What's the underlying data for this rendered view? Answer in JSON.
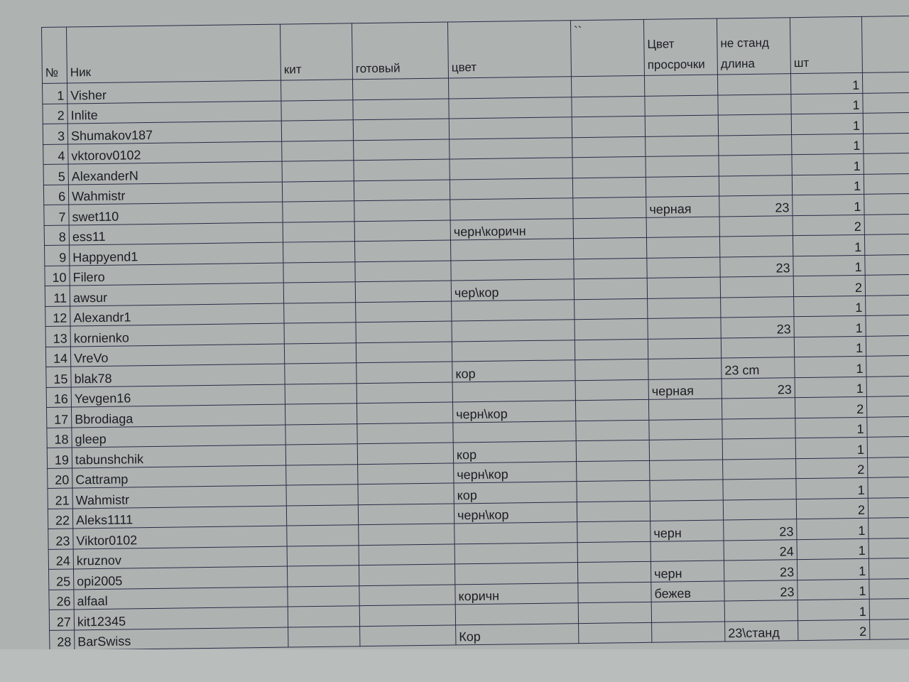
{
  "columns": [
    "№",
    "Ник",
    "кит",
    "готовый",
    "цвет",
    "``",
    "Цвет просрочки",
    "не станд длина",
    "шт"
  ],
  "rows": [
    {
      "n": "1",
      "nick": "Visher",
      "kit": "",
      "ready": "",
      "color": "",
      "q": "",
      "seam": "",
      "len": "",
      "qty": "1"
    },
    {
      "n": "2",
      "nick": "Inlite",
      "kit": "",
      "ready": "",
      "color": "",
      "q": "",
      "seam": "",
      "len": "",
      "qty": "1"
    },
    {
      "n": "3",
      "nick": "Shumakov187",
      "kit": "",
      "ready": "",
      "color": "",
      "q": "",
      "seam": "",
      "len": "",
      "qty": "1"
    },
    {
      "n": "4",
      "nick": "vktorov0102",
      "kit": "",
      "ready": "",
      "color": "",
      "q": "",
      "seam": "",
      "len": "",
      "qty": "1"
    },
    {
      "n": "5",
      "nick": "AlexanderN",
      "kit": "",
      "ready": "",
      "color": "",
      "q": "",
      "seam": "",
      "len": "",
      "qty": "1"
    },
    {
      "n": "6",
      "nick": "Wahmistr",
      "kit": "",
      "ready": "",
      "color": "",
      "q": "",
      "seam": "",
      "len": "",
      "qty": "1"
    },
    {
      "n": "7",
      "nick": "swet110",
      "kit": "",
      "ready": "",
      "color": "",
      "q": "",
      "seam": "черная",
      "len": "23",
      "qty": "1"
    },
    {
      "n": "8",
      "nick": "ess11",
      "kit": "",
      "ready": "",
      "color": "черн\\коричн",
      "q": "",
      "seam": "",
      "len": "",
      "qty": "2"
    },
    {
      "n": "9",
      "nick": "Happyend1",
      "kit": "",
      "ready": "",
      "color": "",
      "q": "",
      "seam": "",
      "len": "",
      "qty": "1"
    },
    {
      "n": "10",
      "nick": "Filero",
      "kit": "",
      "ready": "",
      "color": "",
      "q": "",
      "seam": "",
      "len": "23",
      "qty": "1"
    },
    {
      "n": "11",
      "nick": "awsur",
      "kit": "",
      "ready": "",
      "color": "чер\\кор",
      "q": "",
      "seam": "",
      "len": "",
      "qty": "2"
    },
    {
      "n": "12",
      "nick": "Alexandr1",
      "kit": "",
      "ready": "",
      "color": "",
      "q": "",
      "seam": "",
      "len": "",
      "qty": "1"
    },
    {
      "n": "13",
      "nick": "kornienko",
      "kit": "",
      "ready": "",
      "color": "",
      "q": "",
      "seam": "",
      "len": "23",
      "qty": "1"
    },
    {
      "n": "14",
      "nick": "VreVo",
      "kit": "",
      "ready": "",
      "color": "",
      "q": "",
      "seam": "",
      "len": "",
      "qty": "1"
    },
    {
      "n": "15",
      "nick": "blak78",
      "kit": "",
      "ready": "",
      "color": "кор",
      "q": "",
      "seam": "",
      "len": "23 cm",
      "qty": "1"
    },
    {
      "n": "16",
      "nick": "Yevgen16",
      "kit": "",
      "ready": "",
      "color": "",
      "q": "",
      "seam": "черная",
      "len": "23",
      "qty": "1"
    },
    {
      "n": "17",
      "nick": "Bbrodiaga",
      "kit": "",
      "ready": "",
      "color": "черн\\кор",
      "q": "",
      "seam": "",
      "len": "",
      "qty": "2"
    },
    {
      "n": "18",
      "nick": "gleep",
      "kit": "",
      "ready": "",
      "color": "",
      "q": "",
      "seam": "",
      "len": "",
      "qty": "1"
    },
    {
      "n": "19",
      "nick": "tabunshchik",
      "kit": "",
      "ready": "",
      "color": "кор",
      "q": "",
      "seam": "",
      "len": "",
      "qty": "1"
    },
    {
      "n": "20",
      "nick": "Cattramp",
      "kit": "",
      "ready": "",
      "color": "черн\\кор",
      "q": "",
      "seam": "",
      "len": "",
      "qty": "2"
    },
    {
      "n": "21",
      "nick": "Wahmistr",
      "kit": "",
      "ready": "",
      "color": "кор",
      "q": "",
      "seam": "",
      "len": "",
      "qty": "1"
    },
    {
      "n": "22",
      "nick": "Aleks1111",
      "kit": "",
      "ready": "",
      "color": "черн\\кор",
      "q": "",
      "seam": "",
      "len": "",
      "qty": "2"
    },
    {
      "n": "23",
      "nick": "Viktor0102",
      "kit": "",
      "ready": "",
      "color": "",
      "q": "",
      "seam": "черн",
      "len": "23",
      "qty": "1"
    },
    {
      "n": "24",
      "nick": "kruznov",
      "kit": "",
      "ready": "",
      "color": "",
      "q": "",
      "seam": "",
      "len": "24",
      "qty": "1"
    },
    {
      "n": "25",
      "nick": "opi2005",
      "kit": "",
      "ready": "",
      "color": "",
      "q": "",
      "seam": "черн",
      "len": "23",
      "qty": "1"
    },
    {
      "n": "26",
      "nick": "alfaal",
      "kit": "",
      "ready": "",
      "color": "коричн",
      "q": "",
      "seam": "бежев",
      "len": "23",
      "qty": "1"
    },
    {
      "n": "27",
      "nick": "kit12345",
      "kit": "",
      "ready": "",
      "color": "",
      "q": "",
      "seam": "",
      "len": "",
      "qty": "1"
    },
    {
      "n": "28",
      "nick": "BarSwiss",
      "kit": "",
      "ready": "",
      "color": "Кор",
      "q": "",
      "seam": "",
      "len": "23\\станд",
      "qty": "2"
    }
  ]
}
